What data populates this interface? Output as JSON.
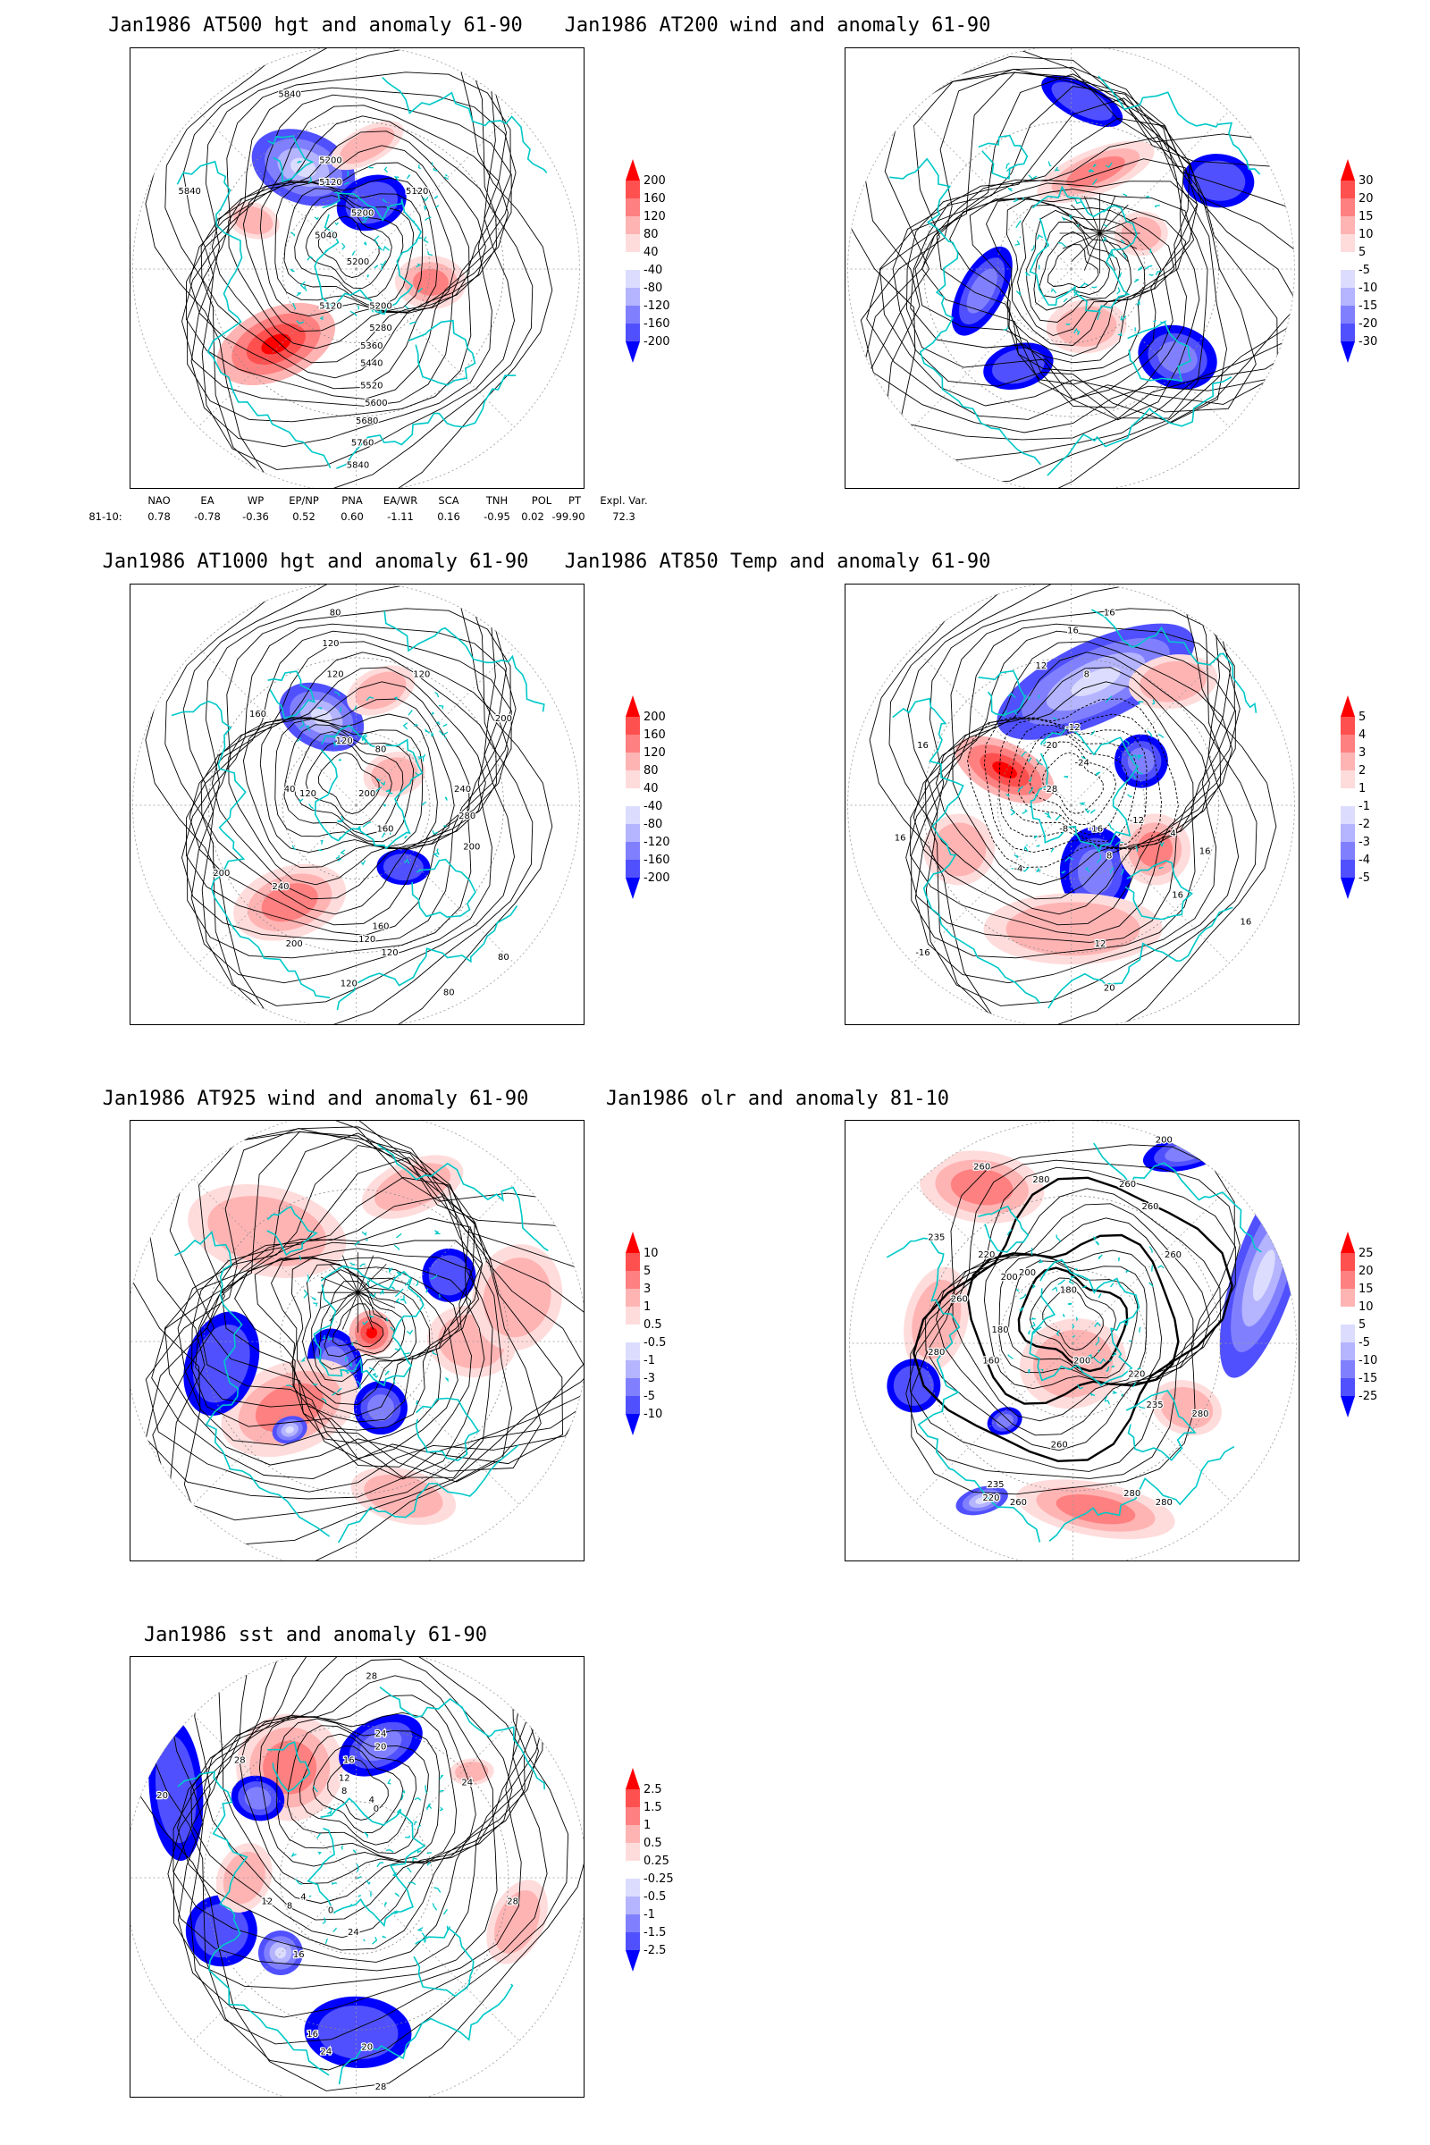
{
  "panels": [
    {
      "id": "p1",
      "title": "Jan1986 AT500 hgt and anomaly 61-90",
      "kind": "height",
      "contour_labels": [
        "5840",
        "5840",
        "5200",
        "5120",
        "5040",
        "5200",
        "5120",
        "5200",
        "5280",
        "5360",
        "5440",
        "5520",
        "5600",
        "5680",
        "5760",
        "5840",
        "5120",
        "5200"
      ],
      "colorbar": {
        "labels": [
          "200",
          "160",
          "120",
          "80",
          "40",
          "-40",
          "-80",
          "-120",
          "-160",
          "-200"
        ]
      }
    },
    {
      "id": "p2",
      "title": "Jan1986 AT200 wind and anomaly 61-90",
      "kind": "wind",
      "contour_labels": [],
      "colorbar": {
        "labels": [
          "30",
          "20",
          "15",
          "10",
          "5",
          "-5",
          "-10",
          "-15",
          "-20",
          "-30"
        ]
      }
    },
    {
      "id": "p3",
      "title": "Jan1986 AT1000 hgt and anomaly 61-90",
      "kind": "height",
      "contour_labels": [
        "80",
        "120",
        "120",
        "120",
        "160",
        "200",
        "240",
        "280",
        "200",
        "200",
        "240",
        "200",
        "120",
        "80",
        "40",
        "120",
        "160",
        "120",
        "80",
        "200",
        "120",
        "80",
        "160",
        "120"
      ],
      "colorbar": {
        "labels": [
          "200",
          "160",
          "120",
          "80",
          "40",
          "-40",
          "-80",
          "-120",
          "-160",
          "-200"
        ]
      }
    },
    {
      "id": "p4",
      "title": "Jan1986 AT850 Temp and anomaly 61-90",
      "kind": "temp",
      "contour_labels": [
        "16",
        "16",
        "12",
        "8",
        "16",
        "-12",
        "-20",
        "-24",
        "-28",
        "-16",
        "-12",
        "-8",
        "4",
        "-4",
        "8",
        "16",
        "16",
        "-16",
        "16",
        "12",
        "20",
        "16"
      ],
      "colorbar": {
        "labels": [
          "5",
          "4",
          "3",
          "2",
          "1",
          "-1",
          "-2",
          "-3",
          "-4",
          "-5"
        ]
      }
    },
    {
      "id": "p5",
      "title": "Jan1986 AT925 wind and anomaly 61-90",
      "kind": "wind",
      "contour_labels": [],
      "colorbar": {
        "labels": [
          "10",
          "5",
          "3",
          "1",
          "0.5",
          "-0.5",
          "-1",
          "-3",
          "-5",
          "-10"
        ]
      }
    },
    {
      "id": "p6",
      "title": "Jan1986 olr and anomaly 81-10",
      "kind": "olr",
      "contour_labels": [
        "260",
        "280",
        "260",
        "200",
        "260",
        "235",
        "260",
        "220",
        "200",
        "180",
        "280",
        "200",
        "260",
        "180",
        "160",
        "200",
        "220",
        "235",
        "280",
        "260",
        "220",
        "235",
        "280",
        "260",
        "280"
      ],
      "colorbar": {
        "labels": [
          "25",
          "20",
          "15",
          "10",
          "5",
          "-5",
          "-10",
          "-15",
          "-25"
        ]
      }
    },
    {
      "id": "p7",
      "title": "Jan1986 sst and anomaly 61-90",
      "kind": "sst",
      "contour_labels": [
        "28",
        "24",
        "20",
        "16",
        "12",
        "8",
        "4",
        "0",
        "28",
        "24",
        "20",
        "12",
        "8",
        "4",
        "0",
        "16",
        "16",
        "20",
        "24",
        "28",
        "24",
        "28"
      ],
      "colorbar": {
        "labels": [
          "2.5",
          "1.5",
          "1",
          "0.5",
          "0.25",
          "-0.25",
          "-0.5",
          "-1",
          "-1.5",
          "-2.5"
        ]
      }
    }
  ],
  "indices": {
    "headers": [
      "NAO",
      "EA",
      "WP",
      "EP/NP",
      "PNA",
      "EA/WR",
      "SCA",
      "TNH",
      "POL",
      "PT",
      "Expl. Var."
    ],
    "row_label": "81-10:",
    "values": [
      "0.78",
      "-0.78",
      "-0.36",
      "0.52",
      "0.60",
      "-1.11",
      "0.16",
      "-0.95",
      "0.02",
      "-99.90",
      "72.3"
    ]
  },
  "colors": {
    "positive": [
      "#ff0000",
      "#ff5050",
      "#ff8080",
      "#ffb4b4",
      "#ffdcdc"
    ],
    "negative": [
      "#dcdcff",
      "#b4b4ff",
      "#8080ff",
      "#5050ff",
      "#0000ff"
    ],
    "coast": "#00c8c8",
    "contour": "#000000"
  }
}
